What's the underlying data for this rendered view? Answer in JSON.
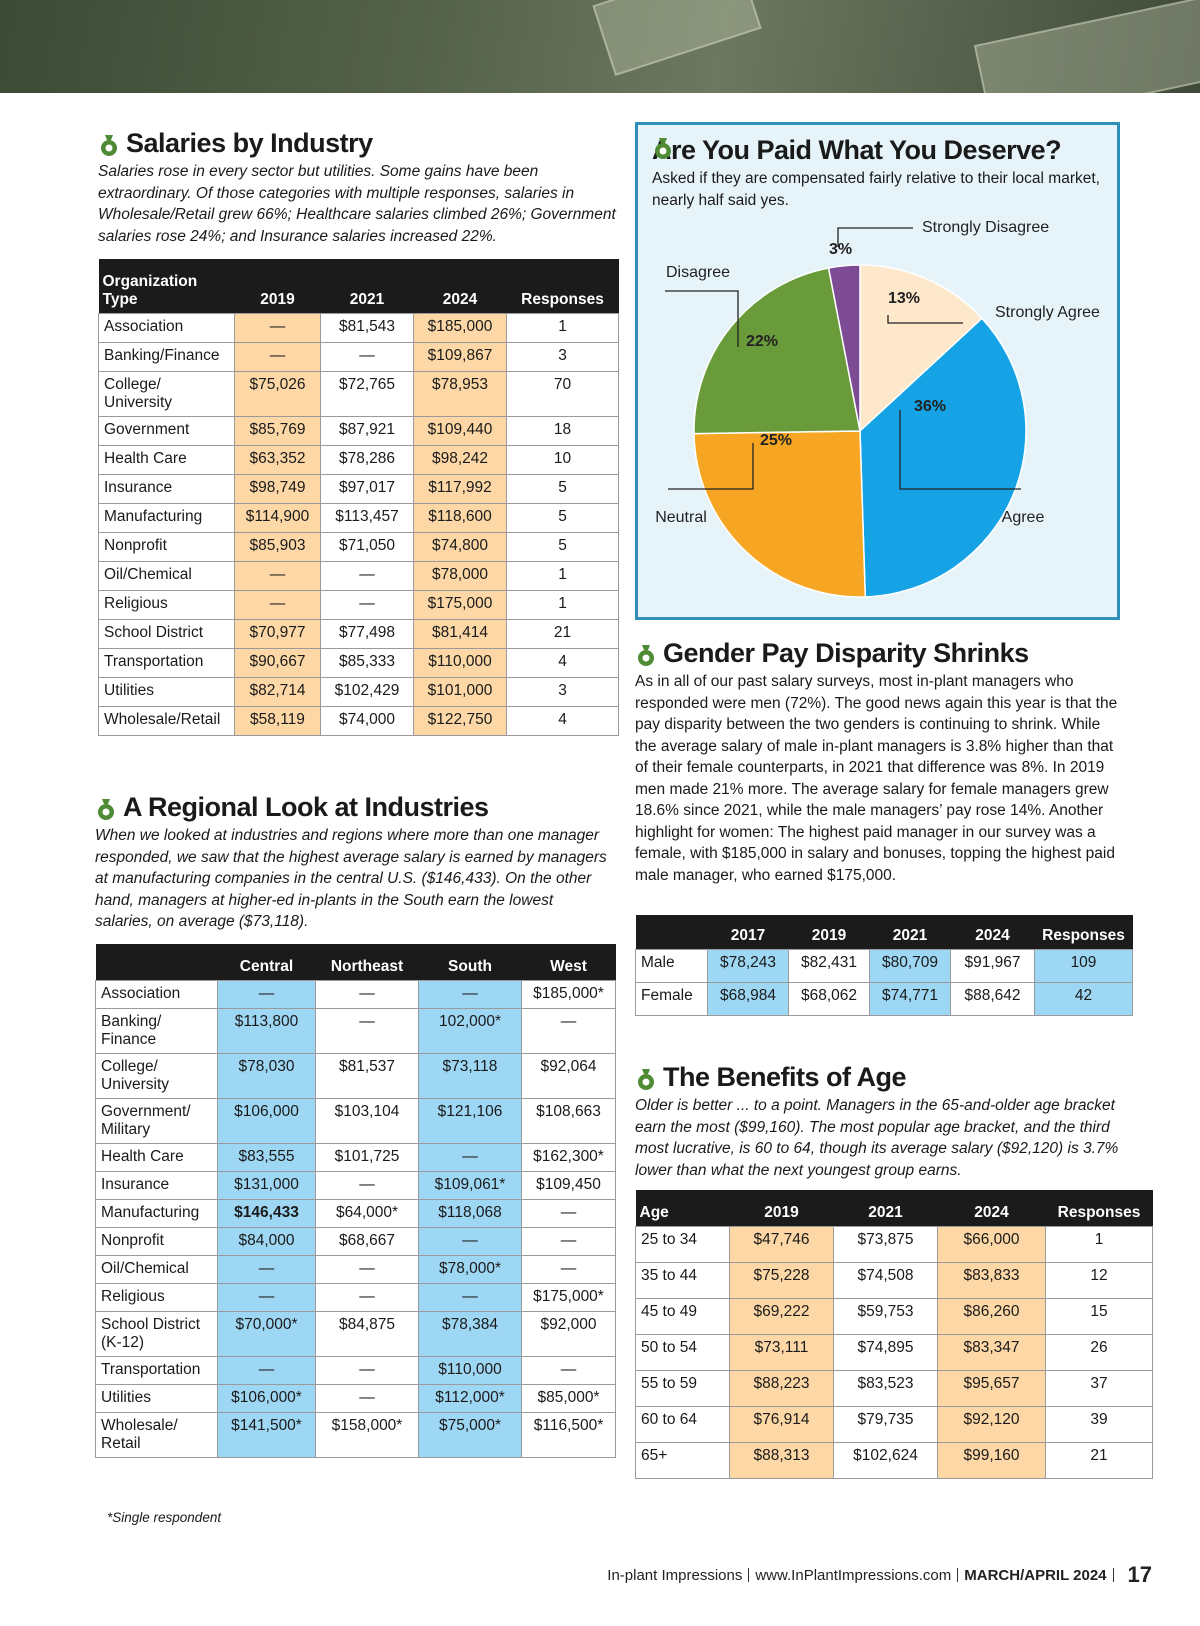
{
  "salaries_by_industry": {
    "title": "Salaries by Industry",
    "intro": "Salaries rose in every sector but utilities. Some gains have been extraordinary. Of those categories with multiple responses, salaries in Wholesale/Retail grew 66%; Healthcare salaries climbed 26%; Government salaries rose 24%; and Insurance salaries increased 22%.",
    "table": {
      "columns": [
        "Organization Type",
        "2019",
        "2021",
        "2024",
        "Responses"
      ],
      "rows": [
        [
          "Association",
          "—",
          "$81,543",
          "$185,000",
          "1"
        ],
        [
          "Banking/Finance",
          "—",
          "—",
          "$109,867",
          "3"
        ],
        [
          "College/ University",
          "$75,026",
          "$72,765",
          "$78,953",
          "70"
        ],
        [
          "Government",
          "$85,769",
          "$87,921",
          "$109,440",
          "18"
        ],
        [
          "Health Care",
          "$63,352",
          "$78,286",
          "$98,242",
          "10"
        ],
        [
          "Insurance",
          "$98,749",
          "$97,017",
          "$117,992",
          "5"
        ],
        [
          "Manufacturing",
          "$114,900",
          "$113,457",
          "$118,600",
          "5"
        ],
        [
          "Nonprofit",
          "$85,903",
          "$71,050",
          "$74,800",
          "5"
        ],
        [
          "Oil/Chemical",
          "—",
          "—",
          "$78,000",
          "1"
        ],
        [
          "Religious",
          "—",
          "—",
          "$175,000",
          "1"
        ],
        [
          "School District",
          "$70,977",
          "$77,498",
          "$81,414",
          "21"
        ],
        [
          "Transportation",
          "$90,667",
          "$85,333",
          "$110,000",
          "4"
        ],
        [
          "Utilities",
          "$82,714",
          "$102,429",
          "$101,000",
          "3"
        ],
        [
          "Wholesale/Retail",
          "$58,119",
          "$74,000",
          "$122,750",
          "4"
        ]
      ]
    }
  },
  "regional": {
    "title": "A Regional Look at Industries",
    "intro": "When we looked at industries and regions where more than one manager responded, we saw that the highest average salary is earned by managers at manufacturing companies in the central U.S. ($146,433). On the other hand, managers at higher-ed in-plants in the South earn the lowest salaries, on average ($73,118).",
    "table": {
      "columns": [
        null,
        "Central",
        "Northeast",
        "South",
        "West"
      ],
      "rows": [
        [
          "Association",
          "—",
          "—",
          "—",
          "$185,000*"
        ],
        [
          "Banking/ Finance",
          "$113,800",
          "—",
          "102,000*",
          "—"
        ],
        [
          "College/ University",
          "$78,030",
          "$81,537",
          "$73,118",
          "$92,064"
        ],
        [
          "Government/ Military",
          "$106,000",
          "$103,104",
          "$121,106",
          "$108,663"
        ],
        [
          "Health Care",
          "$83,555",
          "$101,725",
          "—",
          "$162,300*"
        ],
        [
          "Insurance",
          "$131,000",
          "—",
          "$109,061*",
          "$109,450"
        ],
        [
          "Manufacturing",
          "$146,433",
          "$64,000*",
          "$118,068",
          "—"
        ],
        [
          "Nonprofit",
          "$84,000",
          "$68,667",
          "—",
          "—"
        ],
        [
          "Oil/Chemical",
          "—",
          "—",
          "$78,000*",
          "—"
        ],
        [
          "Religious",
          "—",
          "—",
          "—",
          "$175,000*"
        ],
        [
          "School District (K-12)",
          "$70,000*",
          "$84,875",
          "$78,384",
          "$92,000"
        ],
        [
          "Transportation",
          "—",
          "—",
          "$110,000",
          "—"
        ],
        [
          "Utilities",
          "$106,000*",
          "—",
          "$112,000*",
          "$85,000*"
        ],
        [
          "Wholesale/ Retail",
          "$141,500*",
          "$158,000*",
          "$75,000*",
          "$116,500*"
        ]
      ]
    },
    "footnote": "*Single respondent"
  },
  "chart_data": {
    "type": "pie",
    "title": "Are You Paid What You Deserve?",
    "subtitle": "Asked if they are compensated fairly relative to their local market, nearly half said yes.",
    "categories": [
      "Strongly Agree",
      "Agree",
      "Neutral",
      "Disagree",
      "Strongly Disagree"
    ],
    "values": [
      13,
      36,
      25,
      22,
      3
    ],
    "value_labels": [
      "13%",
      "36%",
      "25%",
      "22%",
      "3%"
    ],
    "colors": [
      "#fde8cb",
      "#15a3e6",
      "#f6a623",
      "#6a9b3b",
      "#7d4b94"
    ]
  },
  "gender": {
    "title": "Gender Pay Disparity Shrinks",
    "text": "As in all of our past salary surveys, most in-plant managers who responded were men (72%). The good news again this year is that the pay disparity between the two genders is continuing to shrink. While the average salary of male in-plant managers is 3.8% higher than that of their female counterparts, in 2021 that difference was 8%. In 2019 men made 21% more. The average salary for female managers grew 18.6% since 2021, while the male managers’ pay rose 14%. Another highlight for women: The highest paid manager in our survey was a female, with $185,000 in salary and bonuses, topping the highest paid male manager, who earned $175,000.",
    "table": {
      "columns": [
        null,
        "2017",
        "2019",
        "2021",
        "2024",
        "Responses"
      ],
      "rows": [
        [
          "Male",
          "$78,243",
          "$82,431",
          "$80,709",
          "$91,967",
          "109"
        ],
        [
          "Female",
          "$68,984",
          "$68,062",
          "$74,771",
          "$88,642",
          "42"
        ]
      ]
    }
  },
  "age": {
    "title": "The Benefits of Age",
    "intro": "Older is better ... to a point. Managers in the 65-and-older age bracket earn the most ($99,160). The most popular age bracket, and the third most lucrative, is 60 to 64, though its average salary ($92,120) is 3.7% lower than what the next youngest group earns.",
    "table": {
      "columns": [
        "Age",
        "2019",
        "2021",
        "2024",
        "Responses"
      ],
      "rows": [
        [
          "25 to 34",
          "$47,746",
          "$73,875",
          "$66,000",
          "1"
        ],
        [
          "35 to 44",
          "$75,228",
          "$74,508",
          "$83,833",
          "12"
        ],
        [
          "45 to 49",
          "$69,222",
          "$59,753",
          "$86,260",
          "15"
        ],
        [
          "50 to 54",
          "$73,111",
          "$74,895",
          "$83,347",
          "26"
        ],
        [
          "55 to 59",
          "$88,223",
          "$83,523",
          "$95,657",
          "37"
        ],
        [
          "60 to 64",
          "$76,914",
          "$79,735",
          "$92,120",
          "39"
        ],
        [
          "65+",
          "$88,313",
          "$102,624",
          "$99,160",
          "21"
        ]
      ]
    }
  },
  "footer": {
    "publication": "In-plant Impressions",
    "website": "www.InPlantImpressions.com",
    "issue": "MARCH/APRIL 2024",
    "page": "17"
  }
}
